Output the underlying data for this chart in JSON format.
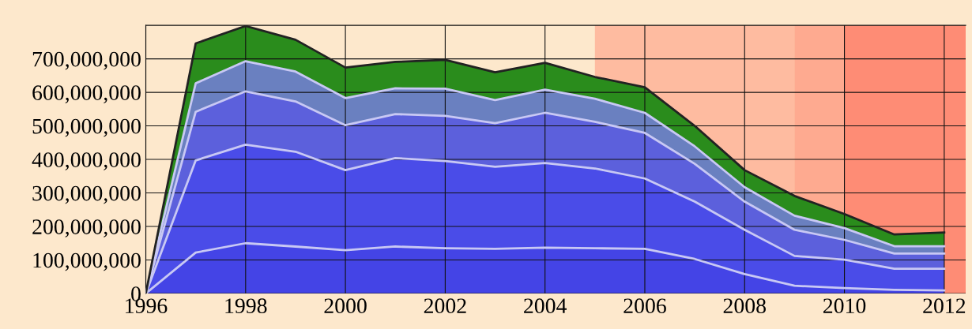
{
  "chart_data": {
    "type": "area",
    "stacked": true,
    "x": [
      1996,
      1997,
      1998,
      1999,
      2000,
      2001,
      2002,
      2003,
      2004,
      2005,
      2006,
      2007,
      2008,
      2009,
      2010,
      2011,
      2012
    ],
    "series": [
      {
        "color": "#4444e6",
        "values": [
          0,
          122000000,
          150000000,
          140000000,
          129000000,
          140000000,
          135000000,
          133000000,
          137000000,
          135000000,
          133000000,
          103000000,
          58000000,
          23000000,
          16000000,
          11000000,
          9000000
        ]
      },
      {
        "color": "#4a4ce8",
        "values": [
          0,
          275000000,
          294000000,
          283000000,
          239000000,
          264000000,
          260000000,
          245000000,
          252000000,
          238000000,
          210000000,
          171000000,
          132000000,
          89000000,
          85000000,
          63000000,
          65000000
        ]
      },
      {
        "color": "#5c60dc",
        "values": [
          0,
          145000000,
          159000000,
          150000000,
          134000000,
          131000000,
          135000000,
          130000000,
          150000000,
          139000000,
          136000000,
          113000000,
          84000000,
          78000000,
          59000000,
          45000000,
          45000000
        ]
      },
      {
        "color": "#6a80c0",
        "values": [
          0,
          85000000,
          90000000,
          89000000,
          81000000,
          77000000,
          81000000,
          69000000,
          69000000,
          69000000,
          60000000,
          52000000,
          43000000,
          42000000,
          35000000,
          22000000,
          22000000
        ]
      },
      {
        "color": "#2a8c1c",
        "values": [
          0,
          119000000,
          105000000,
          95000000,
          91000000,
          79000000,
          86000000,
          83000000,
          80000000,
          65000000,
          76000000,
          61000000,
          51000000,
          59000000,
          42000000,
          35000000,
          41000000
        ]
      }
    ],
    "xlim": [
      1996,
      2012.43
    ],
    "xticks": [
      1996,
      1998,
      2000,
      2002,
      2004,
      2006,
      2008,
      2010,
      2012
    ],
    "ylim": [
      0,
      800000000
    ],
    "yticks": [
      {
        "value": 0,
        "label": "0"
      },
      {
        "value": 100000000,
        "label": "100,000,000"
      },
      {
        "value": 200000000,
        "label": "200,000,000"
      },
      {
        "value": 300000000,
        "label": "300,000,000"
      },
      {
        "value": 400000000,
        "label": "400,000,000"
      },
      {
        "value": 500000000,
        "label": "500,000,000"
      },
      {
        "value": 600000000,
        "label": "600,000,000"
      },
      {
        "value": 700000000,
        "label": "700,000,000"
      }
    ],
    "bands": [
      {
        "axis": "x",
        "from": 2005,
        "to": 2009,
        "color": "#ff846a"
      },
      {
        "axis": "x",
        "from": 2009,
        "to": 2010,
        "color": "#ff6047"
      },
      {
        "axis": "x",
        "from": 2010,
        "to": 2012.43,
        "color": "#ff1c0b"
      }
    ],
    "grid": true,
    "legend": false
  }
}
